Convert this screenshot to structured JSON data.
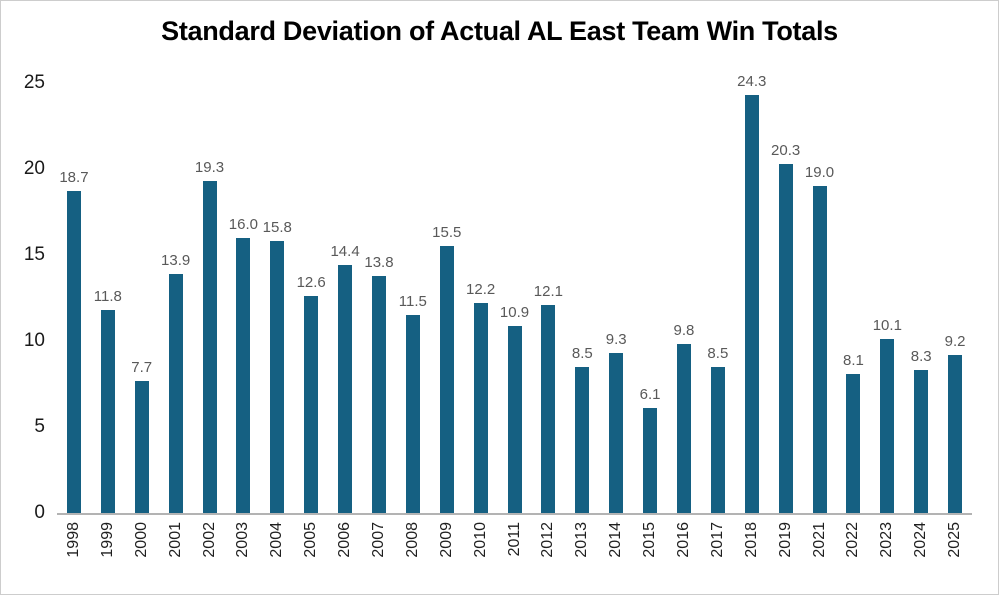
{
  "chart_data": {
    "type": "bar",
    "title": "Standard Deviation of Actual AL East Team Win Totals",
    "categories": [
      "1998",
      "1999",
      "2000",
      "2001",
      "2002",
      "2003",
      "2004",
      "2005",
      "2006",
      "2007",
      "2008",
      "2009",
      "2010",
      "2011",
      "2012",
      "2013",
      "2014",
      "2015",
      "2016",
      "2017",
      "2018",
      "2019",
      "2021",
      "2022",
      "2023",
      "2024",
      "2025"
    ],
    "values": [
      18.7,
      11.8,
      7.7,
      13.9,
      19.3,
      16.0,
      15.8,
      12.6,
      14.4,
      13.8,
      11.5,
      15.5,
      12.2,
      10.9,
      12.1,
      8.5,
      9.3,
      6.1,
      9.8,
      8.5,
      24.3,
      20.3,
      19.0,
      8.1,
      10.1,
      8.3,
      9.2
    ],
    "xlabel": "",
    "ylabel": "",
    "ylim": [
      0,
      25
    ],
    "yticks": [
      0,
      5,
      10,
      15,
      20,
      25
    ],
    "grid": false,
    "legend": false,
    "bar_color": "#156082",
    "value_label_color": "#595959",
    "axis_line_color": "#b3b3b3"
  }
}
